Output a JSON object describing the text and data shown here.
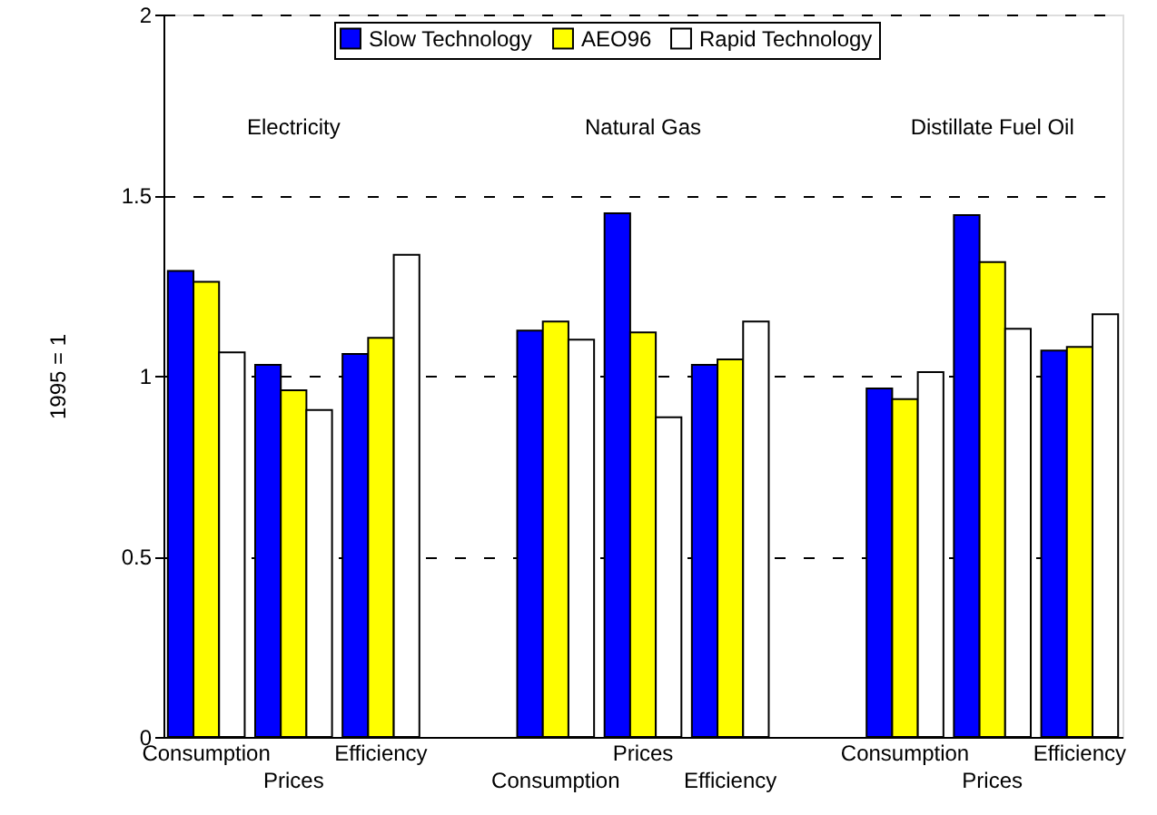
{
  "chart_data": {
    "type": "bar",
    "ylabel": "1995 = 1",
    "categories": [
      "Consumption",
      "Prices",
      "Efficiency",
      null,
      "Consumption",
      "Prices",
      "Efficiency",
      null,
      "Consumption",
      "Prices",
      "Efficiency"
    ],
    "series": [
      {
        "name": "Slow Technology",
        "color": "#0000ff",
        "values": [
          1.29,
          1.03,
          1.06,
          null,
          1.125,
          1.45,
          1.03,
          null,
          0.965,
          1.445,
          1.07
        ]
      },
      {
        "name": "AEO96",
        "color": "#ffff00",
        "values": [
          1.26,
          0.96,
          1.105,
          null,
          1.15,
          1.12,
          1.045,
          null,
          0.935,
          1.315,
          1.08
        ]
      },
      {
        "name": "Rapid Technology",
        "color": "#ffffff",
        "values": [
          1.065,
          0.905,
          1.335,
          null,
          1.1,
          0.885,
          1.15,
          null,
          1.01,
          1.13,
          1.17
        ]
      }
    ],
    "annotations": [
      "Electricity",
      "Natural Gas",
      "Distillate Fuel Oil"
    ],
    "ylim": [
      0,
      2
    ],
    "yticks": [
      0,
      0.5,
      1,
      1.5,
      2
    ],
    "grid": "y",
    "legend": "top"
  }
}
